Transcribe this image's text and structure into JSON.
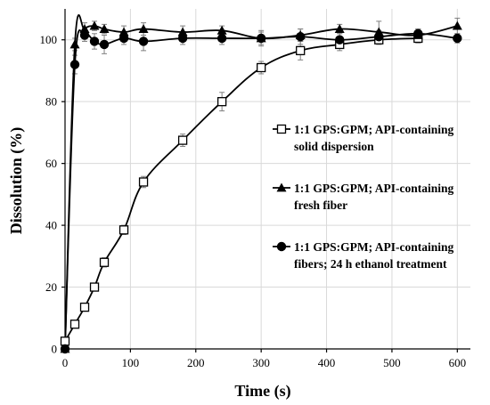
{
  "chart_data": {
    "type": "line",
    "xlabel": "Time (s)",
    "ylabel": "Dissolution (%)",
    "xlim": [
      0,
      620
    ],
    "ylim": [
      0,
      110
    ],
    "xticks": [
      0,
      100,
      200,
      300,
      400,
      500,
      600
    ],
    "yticks": [
      0,
      20,
      40,
      60,
      80,
      100
    ],
    "grid": true,
    "legend_position": "right",
    "series": [
      {
        "name": "1:1 GPS:GPM; API-containing solid dispersion",
        "name_lines": [
          "1:1 GPS:GPM; API-containing",
          "solid dispersion"
        ],
        "marker": "open-square",
        "x": [
          0,
          15,
          30,
          45,
          60,
          90,
          120,
          180,
          240,
          300,
          360,
          420,
          480,
          540
        ],
        "y": [
          2.5,
          8,
          13.5,
          20,
          28,
          38.5,
          54,
          67.5,
          80,
          91,
          96.5,
          98.5,
          100,
          100.5
        ],
        "err": [
          0,
          0.5,
          1,
          1.2,
          1.5,
          1.5,
          1.8,
          2,
          3,
          2,
          3,
          2,
          1.5,
          1.5
        ]
      },
      {
        "name": "1:1 GPS:GPM; API-containing fresh fiber",
        "name_lines": [
          "1:1 GPS:GPM; API-containing",
          "fresh fiber"
        ],
        "marker": "filled-triangle",
        "x": [
          0,
          15,
          30,
          45,
          60,
          90,
          120,
          180,
          240,
          300,
          360,
          420,
          480,
          540,
          600
        ],
        "y": [
          0,
          98.5,
          103.5,
          104.5,
          103.5,
          102.5,
          103.5,
          102.5,
          103,
          100.5,
          101.5,
          103.5,
          102.5,
          101.5,
          104.5
        ],
        "err": [
          0,
          2,
          2,
          1.5,
          1.5,
          2,
          2,
          2,
          1.5,
          2.5,
          2,
          1.5,
          3.5,
          2,
          2.5
        ]
      },
      {
        "name": "1:1 GPS:GPM; API-containing fibers; 24 h ethanol treatment",
        "name_lines": [
          "1:1 GPS:GPM; API-containing",
          "fibers; 24 h ethanol treatment"
        ],
        "marker": "filled-circle",
        "x": [
          0,
          15,
          30,
          45,
          60,
          90,
          120,
          180,
          240,
          300,
          360,
          420,
          480,
          540,
          600
        ],
        "y": [
          0,
          92,
          101.5,
          99.5,
          98.5,
          100.5,
          99.5,
          100.5,
          100.5,
          100.5,
          101,
          100,
          101,
          102,
          100.5
        ],
        "err": [
          0,
          3,
          2,
          2.5,
          3,
          2,
          3,
          2,
          2,
          2,
          2.5,
          2,
          2,
          1.5,
          1.5
        ]
      }
    ]
  }
}
